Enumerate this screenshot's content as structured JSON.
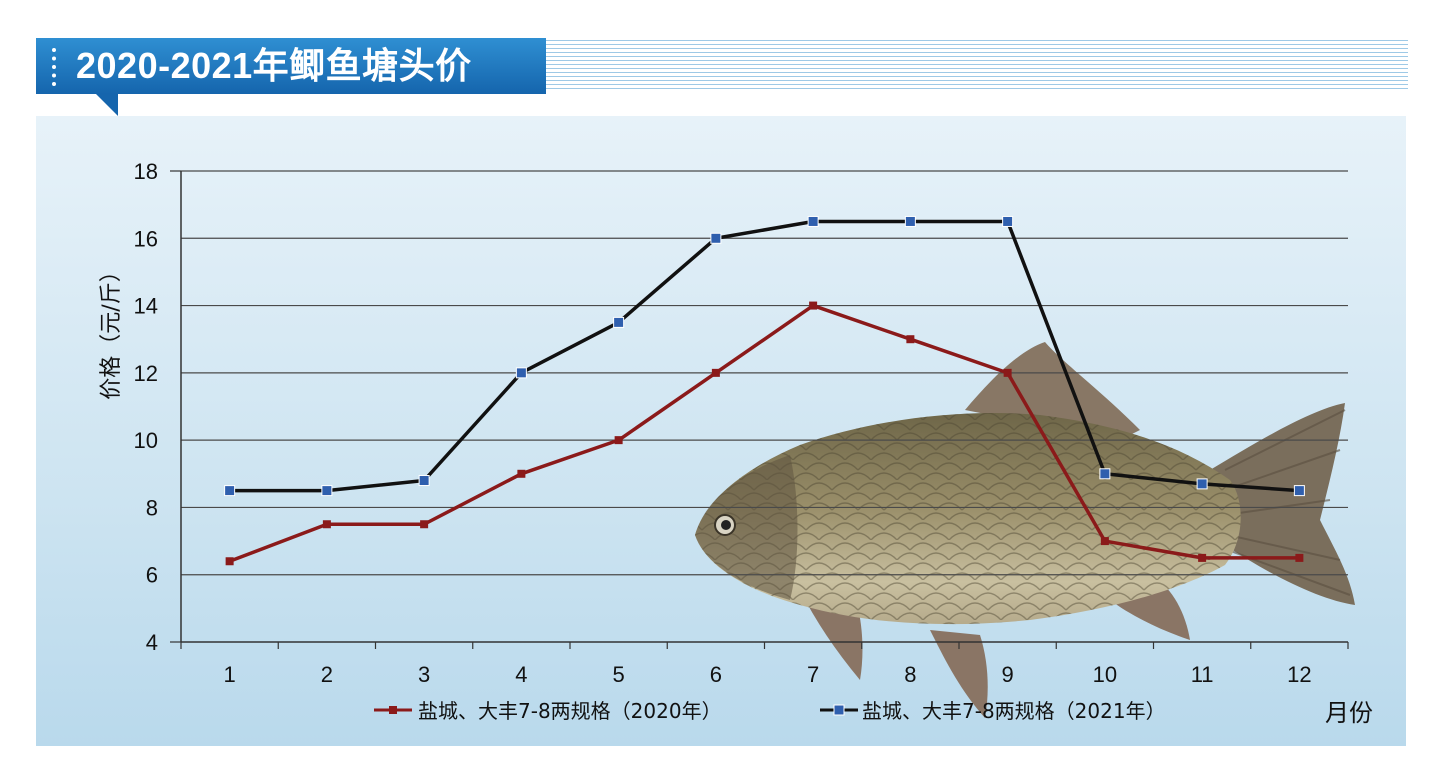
{
  "title": "2020-2021年鲫鱼塘头价",
  "colors": {
    "title_bg": "#1e74bf",
    "series_2020": "#8b1a1a",
    "series_2021": "#111111",
    "marker_2021": "#2f5fae"
  },
  "chart_data": {
    "type": "line",
    "title": "2020-2021年鲫鱼塘头价",
    "xlabel": "月份",
    "ylabel": "价格（元/斤）",
    "categories": [
      "1",
      "2",
      "3",
      "4",
      "5",
      "6",
      "7",
      "8",
      "9",
      "10",
      "11",
      "12"
    ],
    "ylim": [
      4,
      18
    ],
    "yticks": [
      "4",
      "6",
      "8",
      "10",
      "12",
      "14",
      "16",
      "18"
    ],
    "grid": true,
    "legend_position": "bottom",
    "series": [
      {
        "name": "盐城、大丰7-8两规格（2020年）",
        "values": [
          6.4,
          7.5,
          7.5,
          9,
          10,
          12,
          14,
          13,
          12,
          7,
          6.5,
          6.5
        ]
      },
      {
        "name": "盐城、大丰7-8两规格（2021年）",
        "values": [
          8.5,
          8.5,
          8.8,
          12,
          13.5,
          16,
          16.5,
          16.5,
          16.5,
          9,
          8.7,
          8.5
        ]
      }
    ]
  }
}
